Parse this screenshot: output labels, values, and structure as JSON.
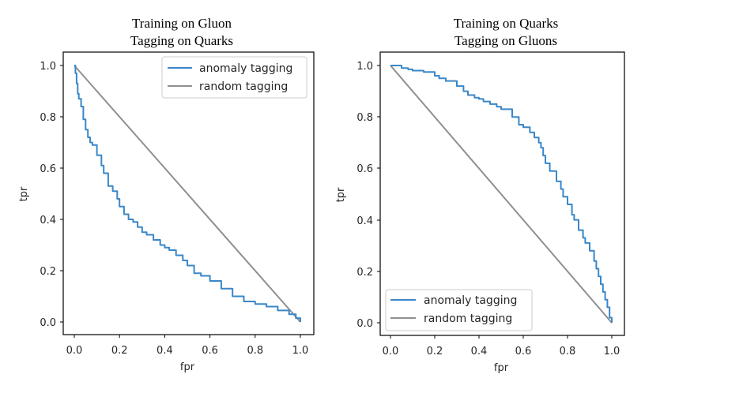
{
  "chart_data": [
    {
      "type": "line",
      "title_line1": "Training on Gluon",
      "title_line2": "Tagging on Quarks",
      "xlabel": "fpr",
      "ylabel": "tpr",
      "xlim": [
        0.0,
        1.0
      ],
      "ylim": [
        0.0,
        1.0
      ],
      "xticks": [
        "0.0",
        "0.2",
        "0.4",
        "0.6",
        "0.8",
        "1.0"
      ],
      "yticks": [
        "0.0",
        "0.2",
        "0.4",
        "0.6",
        "0.8",
        "1.0"
      ],
      "grid": false,
      "legend_position": "top-right",
      "series": [
        {
          "name": "anomaly tagging",
          "color": "#3a87c8",
          "x": [
            0.0,
            0.005,
            0.01,
            0.015,
            0.02,
            0.03,
            0.04,
            0.05,
            0.06,
            0.07,
            0.08,
            0.1,
            0.12,
            0.13,
            0.15,
            0.17,
            0.19,
            0.2,
            0.22,
            0.24,
            0.26,
            0.28,
            0.3,
            0.32,
            0.35,
            0.38,
            0.4,
            0.42,
            0.45,
            0.48,
            0.5,
            0.53,
            0.56,
            0.6,
            0.65,
            0.7,
            0.75,
            0.8,
            0.85,
            0.9,
            0.95,
            0.98,
            1.0
          ],
          "y": [
            1.0,
            0.97,
            0.93,
            0.89,
            0.87,
            0.84,
            0.79,
            0.75,
            0.72,
            0.7,
            0.69,
            0.65,
            0.61,
            0.58,
            0.53,
            0.51,
            0.48,
            0.45,
            0.42,
            0.4,
            0.39,
            0.37,
            0.35,
            0.34,
            0.32,
            0.3,
            0.29,
            0.28,
            0.26,
            0.24,
            0.22,
            0.19,
            0.18,
            0.16,
            0.13,
            0.1,
            0.08,
            0.07,
            0.06,
            0.045,
            0.03,
            0.015,
            0.0
          ]
        },
        {
          "name": "random tagging",
          "color": "#909090",
          "x": [
            0.0,
            1.0
          ],
          "y": [
            1.0,
            0.0
          ]
        }
      ]
    },
    {
      "type": "line",
      "title_line1": "Training on Quarks",
      "title_line2": "Tagging on Gluons",
      "xlabel": "fpr",
      "ylabel": "tpr",
      "xlim": [
        0.0,
        1.0
      ],
      "ylim": [
        0.0,
        1.0
      ],
      "xticks": [
        "0.0",
        "0.2",
        "0.4",
        "0.6",
        "0.8",
        "1.0"
      ],
      "yticks": [
        "0.0",
        "0.2",
        "0.4",
        "0.6",
        "0.8",
        "1.0"
      ],
      "grid": false,
      "legend_position": "bottom-left",
      "series": [
        {
          "name": "anomaly tagging",
          "color": "#3a87c8",
          "x": [
            0.0,
            0.03,
            0.05,
            0.08,
            0.1,
            0.15,
            0.2,
            0.22,
            0.25,
            0.3,
            0.33,
            0.35,
            0.38,
            0.4,
            0.42,
            0.45,
            0.48,
            0.5,
            0.55,
            0.58,
            0.6,
            0.63,
            0.65,
            0.67,
            0.68,
            0.69,
            0.7,
            0.72,
            0.75,
            0.77,
            0.78,
            0.8,
            0.82,
            0.83,
            0.85,
            0.87,
            0.88,
            0.9,
            0.92,
            0.93,
            0.94,
            0.95,
            0.96,
            0.97,
            0.98,
            0.99,
            1.0
          ],
          "y": [
            1.0,
            1.0,
            0.99,
            0.985,
            0.98,
            0.975,
            0.96,
            0.95,
            0.94,
            0.92,
            0.9,
            0.885,
            0.875,
            0.87,
            0.86,
            0.85,
            0.84,
            0.83,
            0.8,
            0.77,
            0.76,
            0.74,
            0.72,
            0.7,
            0.68,
            0.65,
            0.62,
            0.59,
            0.55,
            0.52,
            0.49,
            0.46,
            0.42,
            0.4,
            0.36,
            0.33,
            0.31,
            0.28,
            0.24,
            0.21,
            0.18,
            0.15,
            0.12,
            0.09,
            0.06,
            0.02,
            0.0
          ]
        },
        {
          "name": "random tagging",
          "color": "#909090",
          "x": [
            0.0,
            1.0
          ],
          "y": [
            1.0,
            0.0
          ]
        }
      ]
    }
  ]
}
